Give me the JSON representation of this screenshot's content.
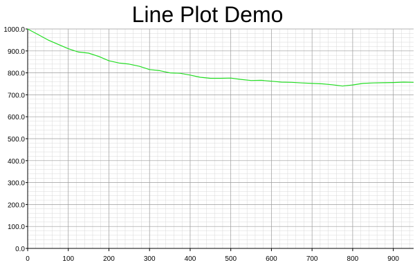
{
  "chart_data": {
    "type": "line",
    "title": "Line Plot Demo",
    "xlabel": "",
    "ylabel": "",
    "xlim": [
      0,
      950
    ],
    "ylim": [
      0,
      1000
    ],
    "grid": true,
    "legend": "none",
    "x_ticks": [
      "0",
      "100",
      "200",
      "300",
      "400",
      "500",
      "600",
      "700",
      "800",
      "900"
    ],
    "y_ticks": [
      "0.0",
      "100.0",
      "200.0",
      "300.0",
      "400.0",
      "500.0",
      "600.0",
      "700.0",
      "800.0",
      "900.0",
      "1000.0"
    ],
    "line_color": "#22dd22",
    "series": [
      {
        "x": [
          0,
          25,
          50,
          75,
          100,
          125,
          150,
          175,
          200,
          225,
          250,
          275,
          300,
          325,
          350,
          375,
          400,
          425,
          450,
          475,
          500,
          525,
          550,
          575,
          600,
          625,
          650,
          675,
          700,
          725,
          750,
          775,
          800,
          825,
          850,
          875,
          900,
          925,
          950
        ],
        "values": [
          1000,
          975,
          950,
          930,
          910,
          895,
          890,
          875,
          855,
          845,
          840,
          830,
          815,
          810,
          800,
          798,
          790,
          780,
          775,
          775,
          776,
          770,
          765,
          766,
          762,
          758,
          757,
          754,
          752,
          750,
          746,
          740,
          745,
          752,
          754,
          755,
          756,
          758,
          757
        ]
      }
    ]
  }
}
